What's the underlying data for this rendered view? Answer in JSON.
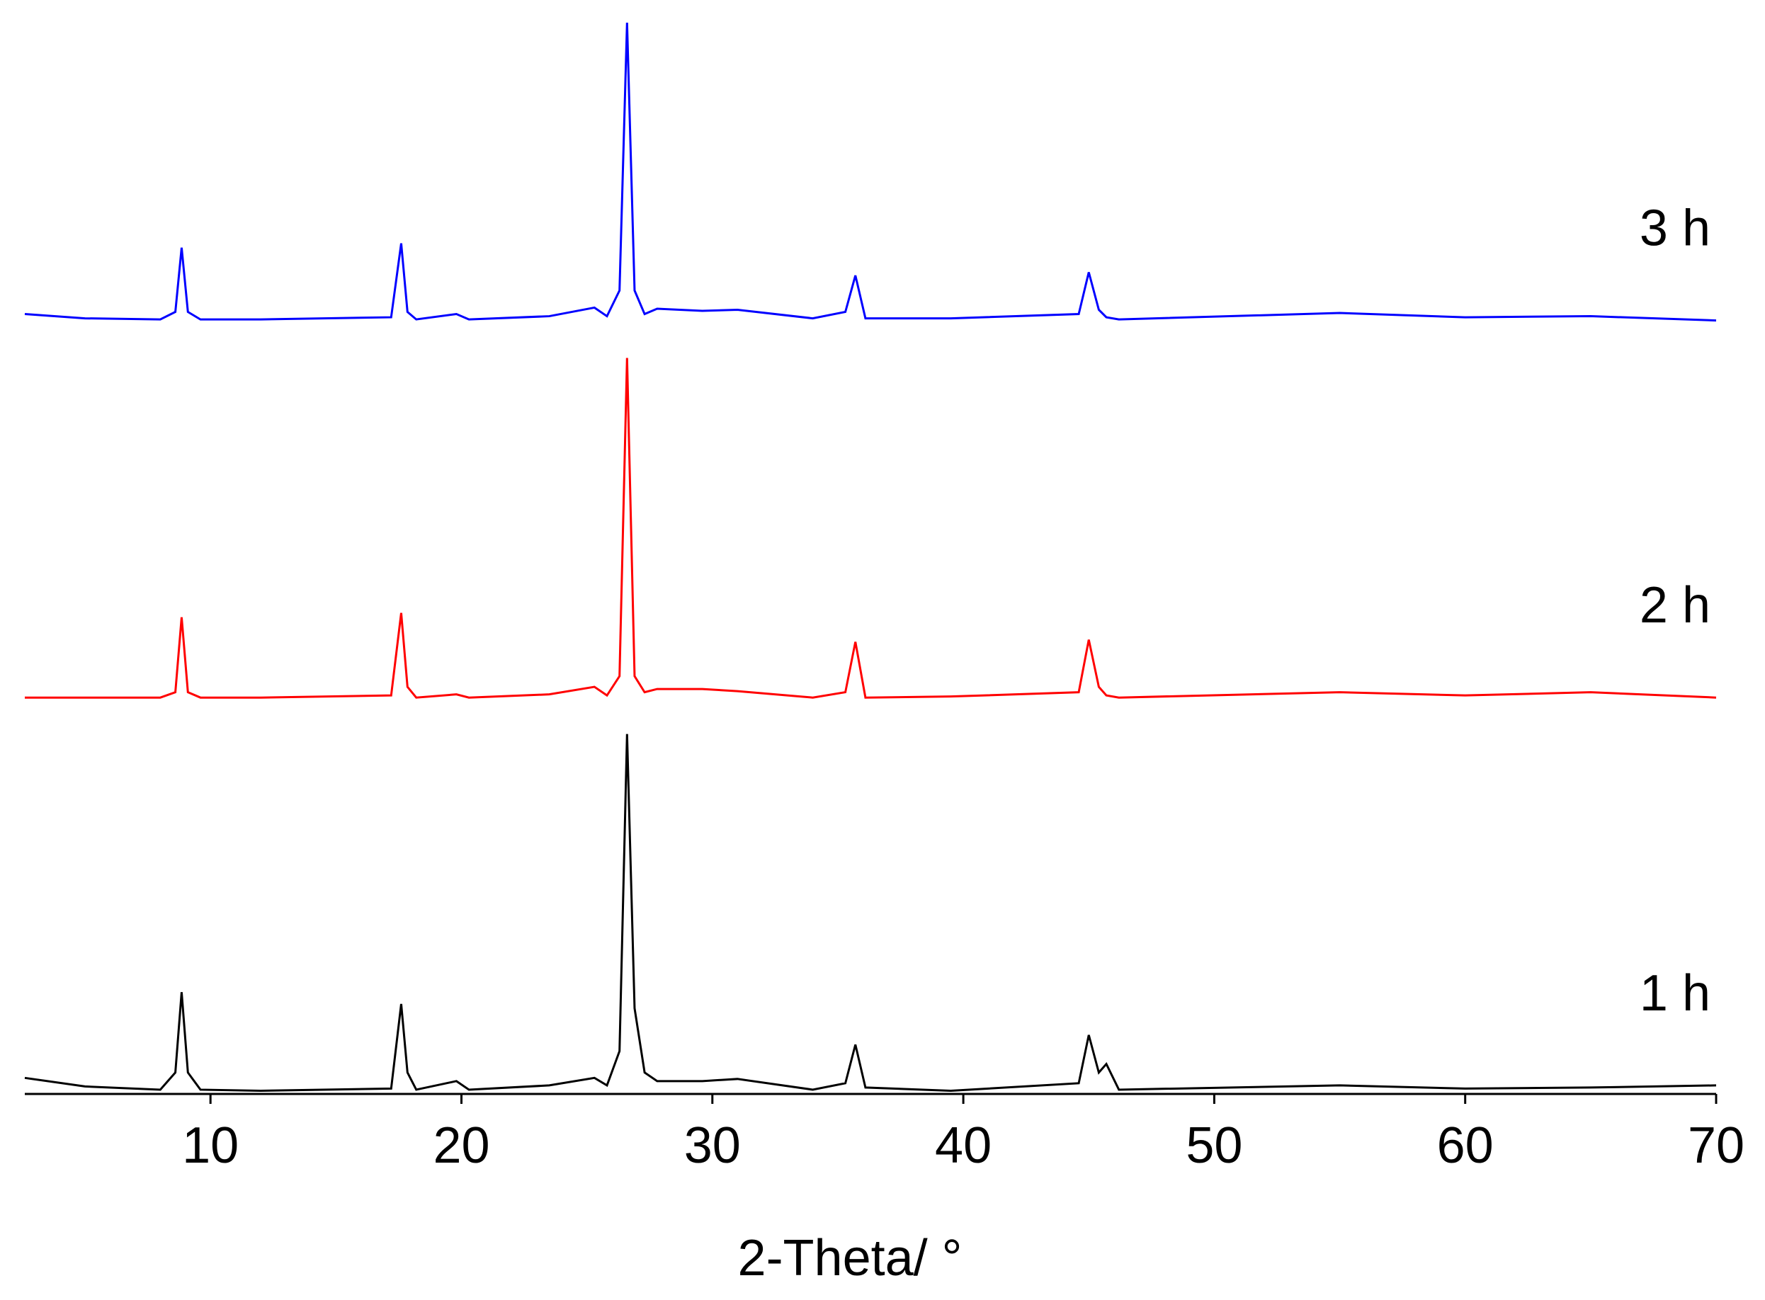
{
  "chart_data": {
    "type": "line",
    "xlabel": "2-Theta/ °",
    "x": [
      2.6,
      5,
      8,
      8.6,
      8.85,
      9.1,
      9.6,
      12,
      17.2,
      17.6,
      17.85,
      18.2,
      19.8,
      20.3,
      23.5,
      25.3,
      25.8,
      26.3,
      26.6,
      26.9,
      27.3,
      27.8,
      29.6,
      31,
      34,
      35.3,
      35.7,
      36.1,
      39.5,
      44.6,
      45,
      45.4,
      45.7,
      46.2,
      55,
      60,
      65,
      70
    ],
    "series": [
      {
        "name": "1 h",
        "color": "#000000",
        "values": [
          1.5,
          0.7,
          0.4,
          2,
          9.5,
          2,
          0.4,
          0.3,
          0.5,
          8.4,
          2,
          0.4,
          1.2,
          0.4,
          0.8,
          1.5,
          0.8,
          4,
          33.6,
          8,
          2,
          1.2,
          1.2,
          1.4,
          0.4,
          1,
          4.6,
          0.6,
          0.3,
          1,
          5.5,
          2,
          2.8,
          0.4,
          0.8,
          0.5,
          0.6,
          0.8
        ]
      },
      {
        "name": "2 h",
        "color": "#ff0000",
        "values": [
          37,
          37,
          37,
          37.5,
          44.5,
          37.5,
          37,
          37,
          37.2,
          44.9,
          38,
          37,
          37.3,
          37,
          37.3,
          38,
          37.2,
          39,
          68.7,
          39,
          37.5,
          37.8,
          37.8,
          37.6,
          37,
          37.5,
          42.2,
          37,
          37.1,
          37.5,
          42.4,
          38,
          37.2,
          37,
          37.5,
          37.2,
          37.5,
          37
        ]
      },
      {
        "name": "3 h",
        "color": "#0000ff",
        "values": [
          72.8,
          72.4,
          72.3,
          73,
          79,
          73,
          72.3,
          72.3,
          72.5,
          79.4,
          73,
          72.3,
          72.8,
          72.3,
          72.6,
          73.4,
          72.6,
          75,
          100,
          75,
          72.8,
          73.3,
          73.1,
          73.2,
          72.4,
          73,
          76.4,
          72.4,
          72.4,
          72.8,
          76.7,
          73.2,
          72.5,
          72.3,
          72.9,
          72.5,
          72.6,
          72.2
        ]
      }
    ],
    "xlim": [
      2.6,
      70
    ],
    "xticks": [
      10,
      20,
      30,
      40,
      50,
      60,
      70
    ],
    "ylim": [
      0,
      100
    ]
  }
}
